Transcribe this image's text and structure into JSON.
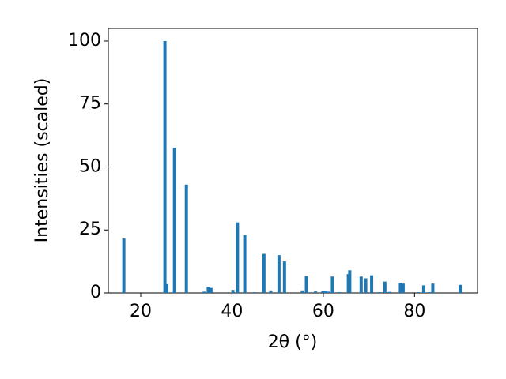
{
  "chart_data": {
    "type": "bar",
    "color": "#1f77b4",
    "xlabel": "2θ (°)",
    "ylabel": "Intensities (scaled)",
    "x": [
      16.3,
      25.3,
      25.7,
      27.4,
      30.0,
      33.9,
      34.8,
      35.4,
      40.2,
      41.2,
      42.8,
      45.0,
      47.0,
      48.5,
      50.3,
      51.5,
      55.4,
      56.3,
      58.3,
      59.9,
      60.5,
      61.2,
      62.0,
      63.5,
      65.5,
      65.8,
      68.3,
      69.3,
      70.6,
      72.3,
      73.5,
      74.5,
      76.9,
      77.5,
      80.8,
      82.0,
      83.3,
      84.0,
      90.0
    ],
    "values": [
      21.6,
      100,
      3.5,
      57.7,
      43,
      0.5,
      2.5,
      2,
      1.2,
      28,
      23,
      0.3,
      15.5,
      1,
      15,
      12.5,
      1,
      6.7,
      0.6,
      0.7,
      0.6,
      0.5,
      6.5,
      0.3,
      7.5,
      9,
      6.5,
      5.8,
      7,
      0.3,
      4.5,
      0.4,
      4,
      3.7,
      0.3,
      3,
      0.3,
      3.7,
      3.2
    ],
    "xlim": [
      12.9,
      93.8
    ],
    "xticks": [
      20,
      40,
      60,
      80
    ],
    "ylim": [
      0,
      105
    ],
    "yticks": [
      0,
      25,
      50,
      75,
      100
    ]
  }
}
